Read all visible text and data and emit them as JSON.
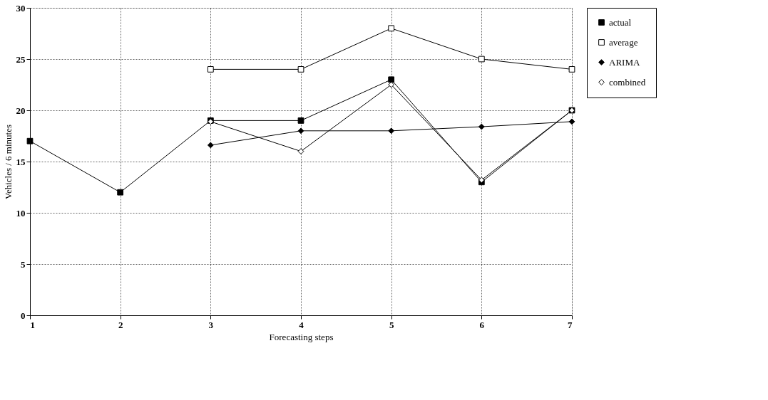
{
  "chart_data": {
    "type": "line",
    "xlabel": "Forecasting steps",
    "ylabel": "Vehicles / 6 minutes",
    "x": [
      1,
      2,
      3,
      4,
      5,
      6,
      7
    ],
    "series": [
      {
        "name": "actual",
        "color": "#000000",
        "marker": "square",
        "values": [
          17,
          12,
          19,
          19,
          23,
          13,
          20
        ]
      },
      {
        "name": "average",
        "color": "#000000",
        "marker": "square",
        "values": [
          null,
          null,
          24,
          24,
          28,
          25,
          24
        ]
      },
      {
        "name": "ARIMA",
        "color": "#000000",
        "marker": "diamond",
        "values": [
          null,
          null,
          16.6,
          18,
          18,
          18.4,
          18.9
        ]
      },
      {
        "name": "combined",
        "color": "#000000",
        "marker": "diamond",
        "values": [
          null,
          null,
          18.9,
          16,
          22.5,
          13.2,
          20
        ]
      }
    ],
    "xlim": [
      1,
      7
    ],
    "xticks": [
      1,
      2,
      3,
      4,
      5,
      6,
      7
    ],
    "ylim": [
      0,
      30
    ],
    "yticks": [
      0,
      5,
      10,
      15,
      20,
      25,
      30
    ],
    "grid": true,
    "legend": "right",
    "line_style": "solid"
  }
}
